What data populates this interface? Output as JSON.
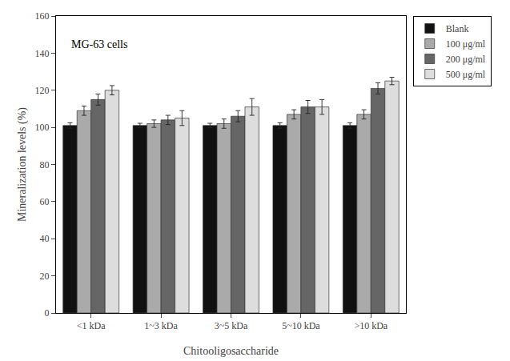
{
  "chart_data": {
    "type": "bar",
    "xlabel": "Chitooligosaccharide",
    "ylabel": "Mineralization levels (%)",
    "annotation": "MG-63 cells",
    "categories": [
      "<1 kDa",
      "1~3 kDa",
      "3~5 kDa",
      "5~10 kDa",
      ">10 kDa"
    ],
    "series": [
      {
        "name": "Blank",
        "color": "#111111",
        "values": [
          101,
          101,
          101,
          101,
          101
        ],
        "errors": [
          1.5,
          1.2,
          1.2,
          1.5,
          1.5
        ]
      },
      {
        "name": "100 μg/ml",
        "color": "#aaaaaa",
        "values": [
          109,
          102,
          102,
          107,
          107
        ],
        "errors": [
          2.5,
          2.0,
          2.5,
          2.5,
          2.5
        ]
      },
      {
        "name": "200 μg/ml",
        "color": "#666666",
        "values": [
          115,
          104,
          106,
          111,
          121
        ],
        "errors": [
          3.0,
          2.5,
          3.0,
          3.5,
          3.0
        ]
      },
      {
        "name": "500 μg/ml",
        "color": "#dddddd",
        "values": [
          120,
          105,
          111,
          111,
          125
        ],
        "errors": [
          2.5,
          4.0,
          4.5,
          4.0,
          2.0
        ]
      }
    ],
    "ylim": [
      0,
      160
    ],
    "yticks": [
      0,
      20,
      40,
      60,
      80,
      100,
      120,
      140,
      160
    ],
    "grid": false,
    "legend": "upper right"
  }
}
